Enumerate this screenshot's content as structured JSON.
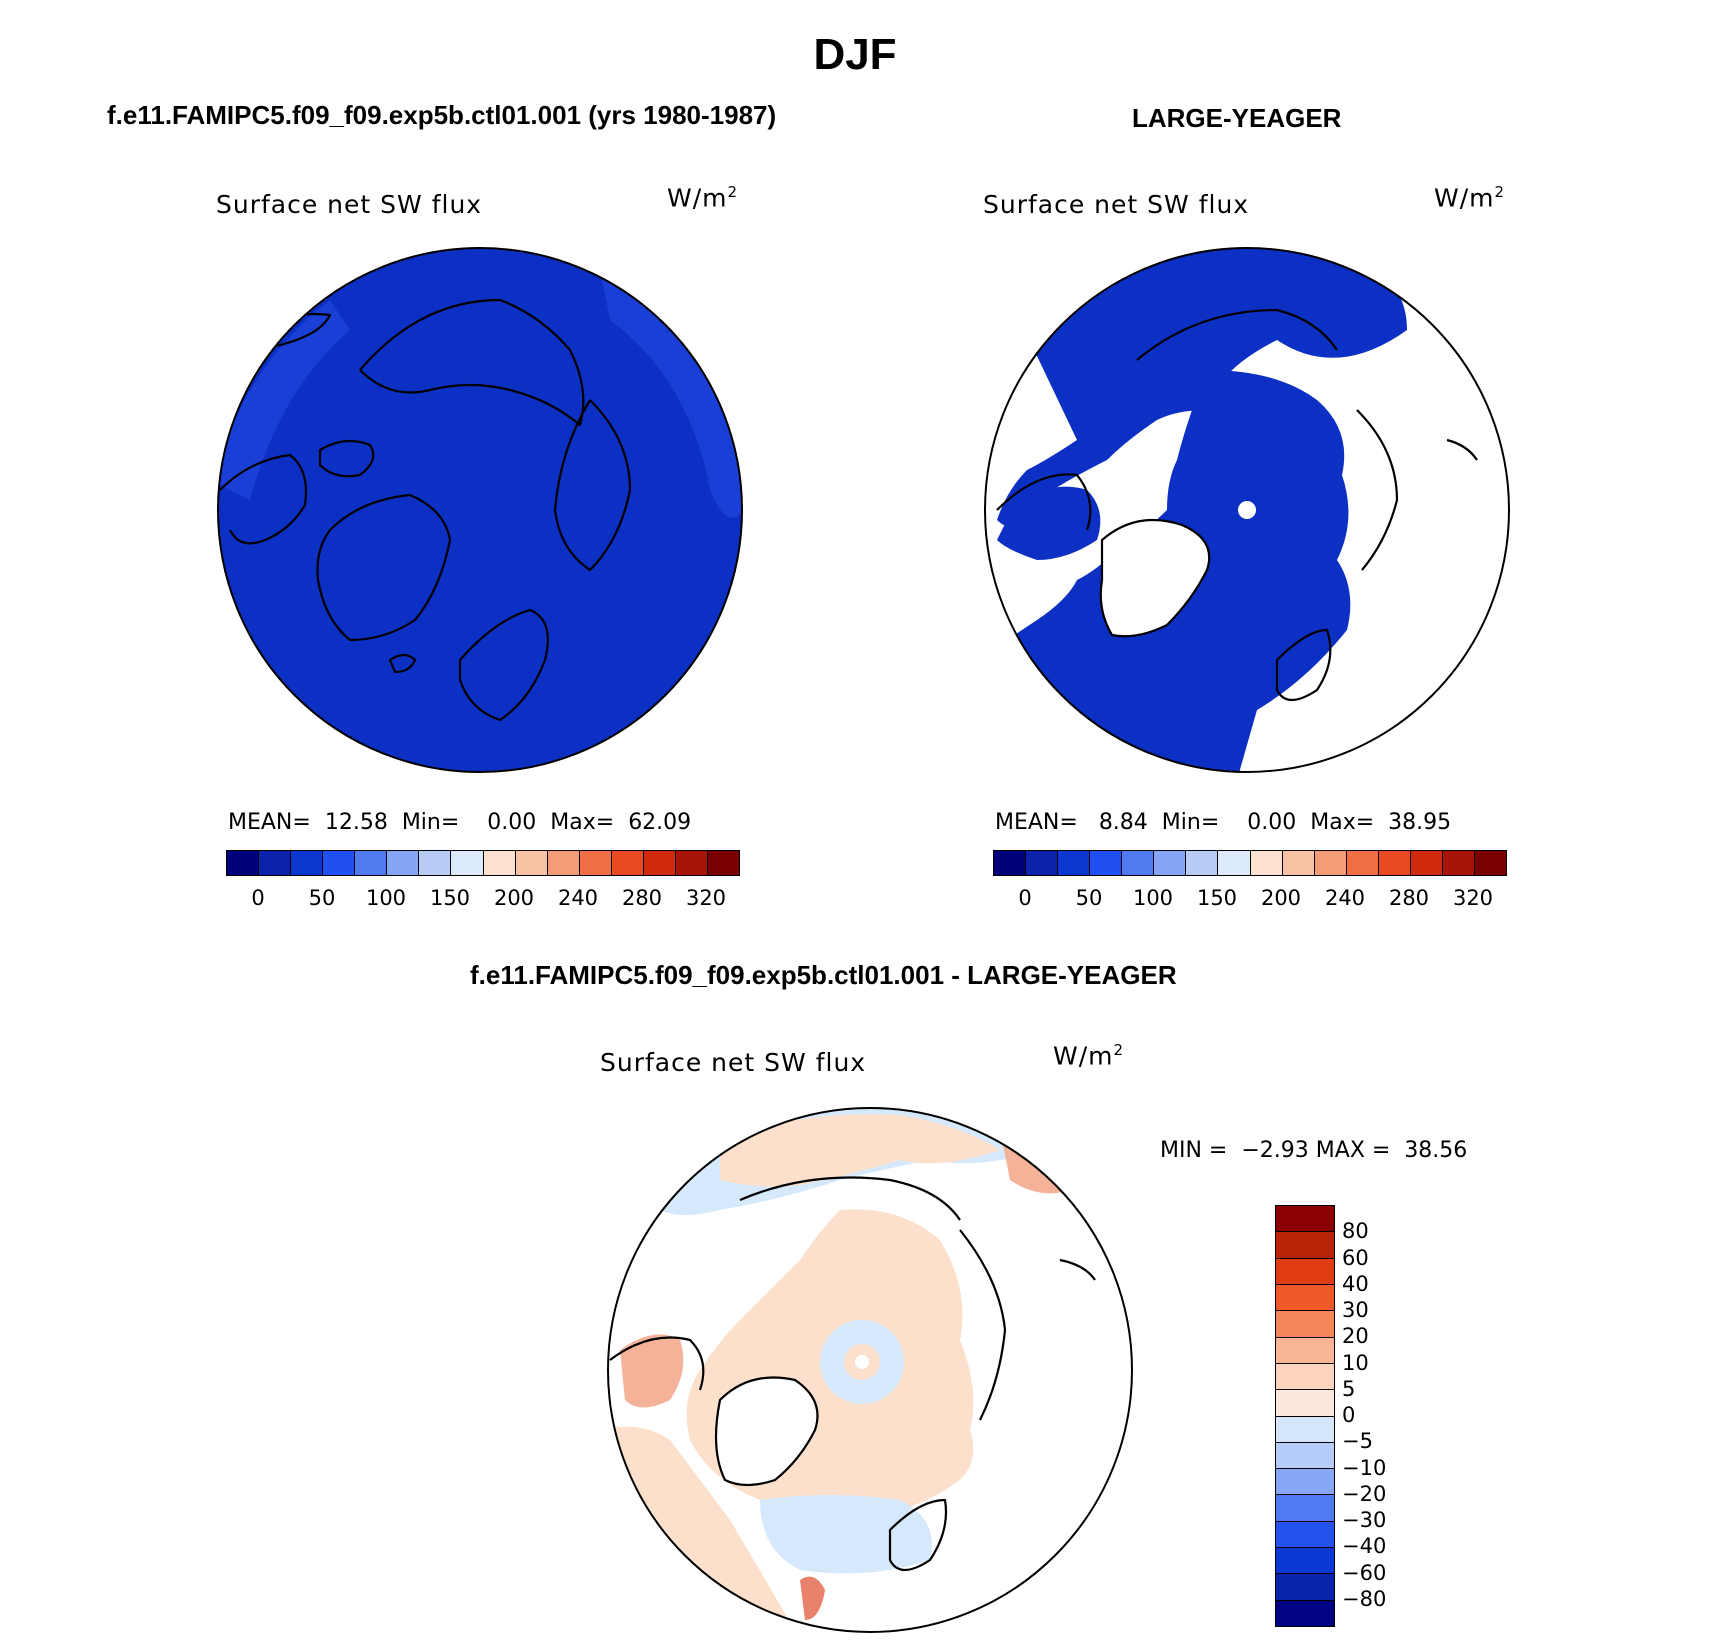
{
  "figure": {
    "title": "DJF"
  },
  "panels": [
    {
      "subtitle": "f.e11.FAMIPC5.f09_f09.exp5b.ctl01.001 (yrs 1980-1987)",
      "plot_title": "Surface net SW flux",
      "units_base": "W/m",
      "units_exp": "2",
      "stats": {
        "mean_label": "MEAN=",
        "mean": "12.58",
        "min_label": "Min=",
        "min": "0.00",
        "max_label": "Max=",
        "max": "62.09"
      }
    },
    {
      "subtitle": "LARGE-YEAGER",
      "plot_title": "Surface net SW flux",
      "units_base": "W/m",
      "units_exp": "2",
      "stats": {
        "mean_label": "MEAN=",
        "mean": "8.84",
        "min_label": "Min=",
        "min": "0.00",
        "max_label": "Max=",
        "max": "38.95"
      }
    }
  ],
  "diff_panel": {
    "subtitle": "f.e11.FAMIPC5.f09_f09.exp5b.ctl01.001 - LARGE-YEAGER",
    "plot_title": "Surface net SW flux",
    "units_base": "W/m",
    "units_exp": "2",
    "stats": {
      "min_label": "MIN =",
      "min": "−2.93",
      "max_label": "MAX =",
      "max": "38.56"
    }
  },
  "colors": {
    "fill_dark_blue": "#0c2fc4",
    "fill_mid_blue": "#1a3fd6",
    "diff_salmon": "#fce0cb",
    "diff_lightblue": "#d6e8fb",
    "diff_orange": "#f4b299",
    "diff_darkorange": "#e8826a"
  },
  "chart_data": [
    {
      "type": "heatmap",
      "projection": "north-polar-stereographic",
      "title": "Surface net SW flux",
      "colorbar": {
        "orientation": "horizontal",
        "colors": [
          "#00007a",
          "#0a23a8",
          "#0d37d1",
          "#2150f0",
          "#4f7af0",
          "#85a5f5",
          "#b7cdf8",
          "#dceafc",
          "#fde3cf",
          "#f9c2a4",
          "#f59b78",
          "#f16f45",
          "#e94a22",
          "#cf2a0d",
          "#a81408",
          "#780000"
        ],
        "tick_labels": [
          "0",
          "50",
          "100",
          "150",
          "200",
          "240",
          "280",
          "320"
        ]
      }
    },
    {
      "type": "heatmap",
      "projection": "north-polar-stereographic",
      "title": "Surface net SW flux",
      "colorbar": {
        "orientation": "horizontal",
        "colors": [
          "#00007a",
          "#0a23a8",
          "#0d37d1",
          "#2150f0",
          "#4f7af0",
          "#85a5f5",
          "#b7cdf8",
          "#dceafc",
          "#fde3cf",
          "#f9c2a4",
          "#f59b78",
          "#f16f45",
          "#e94a22",
          "#cf2a0d",
          "#a81408",
          "#780000"
        ],
        "tick_labels": [
          "0",
          "50",
          "100",
          "150",
          "200",
          "240",
          "280",
          "320"
        ]
      }
    },
    {
      "type": "heatmap",
      "projection": "north-polar-stereographic",
      "title": "Surface net SW flux",
      "colorbar": {
        "orientation": "vertical",
        "colors": [
          "#8b0000",
          "#b82506",
          "#e03c12",
          "#f05a28",
          "#f6875a",
          "#f9b594",
          "#fcd4bd",
          "#fde9db",
          "#d4e6fa",
          "#b5cdf8",
          "#86a8f6",
          "#4f7bf2",
          "#2352ec",
          "#0c38d6",
          "#0823aa",
          "#010482"
        ],
        "tick_labels": [
          "80",
          "60",
          "40",
          "30",
          "20",
          "10",
          "5",
          "0",
          "−5",
          "−10",
          "−20",
          "−30",
          "−40",
          "−60",
          "−80"
        ]
      }
    }
  ]
}
